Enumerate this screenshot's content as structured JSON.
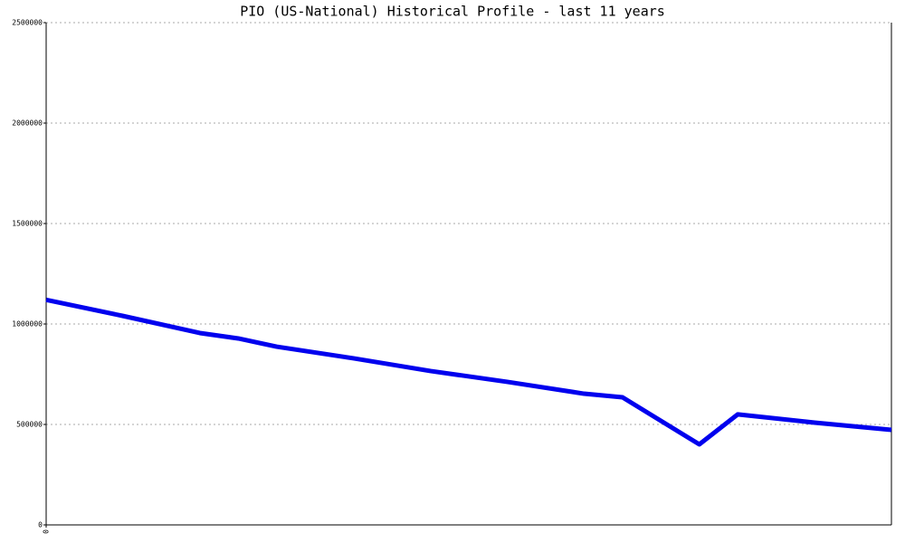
{
  "chart_data": {
    "type": "line",
    "title": "PIO (US-National) Historical Profile - last 11 years",
    "x": [
      0,
      1,
      2,
      2.5,
      3,
      4,
      5,
      6,
      7,
      7.5,
      8.5,
      9,
      10,
      11
    ],
    "series": [
      {
        "name": "PIO",
        "color": "#0000ee",
        "values": [
          1120000,
          1040000,
          955000,
          928000,
          887000,
          829000,
          766000,
          712000,
          653000,
          635000,
          401000,
          550000,
          509000,
          473000
        ]
      }
    ],
    "xlim": [
      0,
      11
    ],
    "xticks": [
      0
    ],
    "ylim": [
      0,
      2500000
    ],
    "yticks": [
      0,
      500000,
      1000000,
      1500000,
      2000000,
      2500000
    ],
    "grid": true
  }
}
